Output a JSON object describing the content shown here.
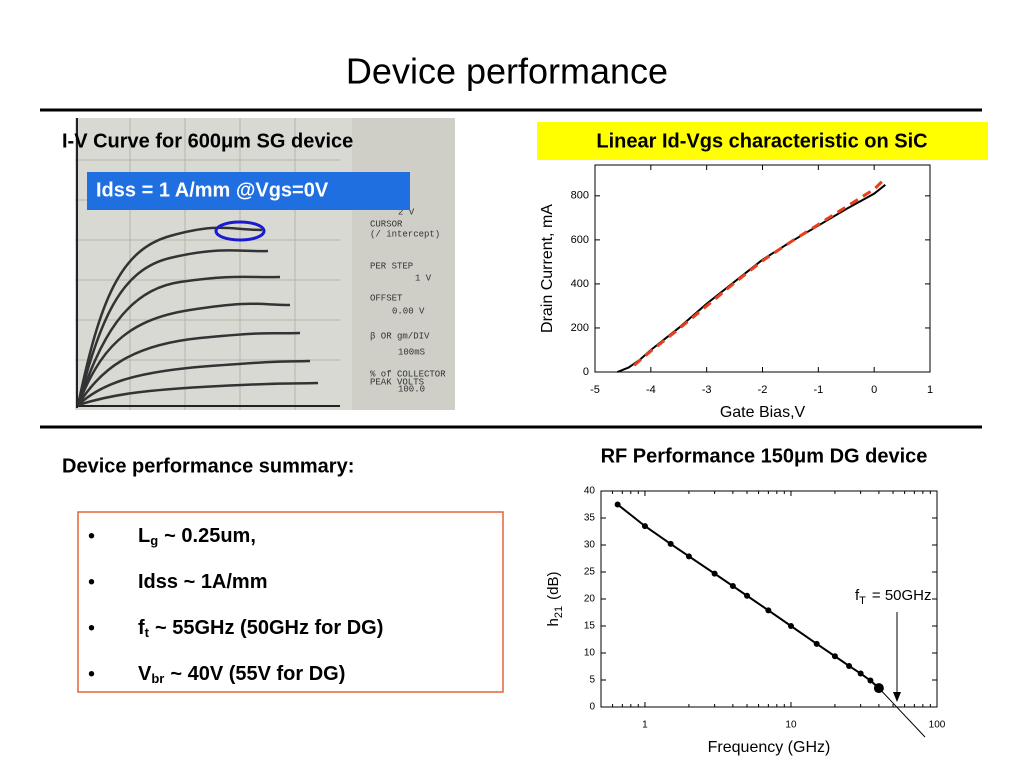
{
  "title": "Device performance",
  "iv_panel": {
    "heading": "I-V Curve for 600μm SG device",
    "callout": "Idss = 1 A/mm @Vgs=0V",
    "scope_labels": [
      "2 V",
      "CURSOR",
      "(/ intercept)",
      "PER STEP",
      "1 V",
      "OFFSET",
      "0.00 V",
      "β OR gm/DIV",
      "100mS",
      "% of COLLECTOR",
      "PEAK VOLTS",
      "100.0"
    ]
  },
  "summary": {
    "heading": "Device performance summary:",
    "items": [
      {
        "main": "L",
        "sub": "g",
        "rest": "~  0.25um,"
      },
      {
        "main": "Idss ~  1A/mm"
      },
      {
        "main": "f",
        "sub": "t",
        "rest": "~ 55GHz (50GHz for DG)"
      },
      {
        "main": "V",
        "sub": "br",
        "rest": "~ 40V (55V for DG)"
      }
    ]
  },
  "chart_data": [
    {
      "type": "line",
      "title": "Linear Id-Vgs characteristic on SiC",
      "x_label": "Gate Bias,V",
      "y_label": "Drain Current, mA",
      "xlim": [
        -5,
        1
      ],
      "xticks": [
        -5,
        -4,
        -3,
        -2,
        -1,
        0,
        1
      ],
      "ylim": [
        0,
        940
      ],
      "yticks": [
        0,
        200,
        400,
        600,
        800
      ],
      "series": [
        {
          "color": "#000000",
          "dash": false,
          "x": [
            -4.6,
            -4.4,
            -4.2,
            -4.0,
            -3.5,
            -3.0,
            -2.5,
            -2.0,
            -1.5,
            -1.0,
            -0.5,
            0.0,
            0.2
          ],
          "values": [
            0,
            20,
            55,
            100,
            200,
            310,
            410,
            510,
            590,
            665,
            740,
            810,
            850
          ]
        },
        {
          "color": "#e8401c",
          "dash": true,
          "x": [
            -4.3,
            -4.0,
            -3.5,
            -3.0,
            -2.5,
            -2.0,
            -1.5,
            -1.0,
            -0.5,
            0.0,
            0.2
          ],
          "values": [
            30,
            95,
            195,
            300,
            405,
            505,
            590,
            670,
            750,
            830,
            880
          ]
        }
      ]
    },
    {
      "type": "scatter",
      "title": "RF Performance 150μm DG device",
      "x_label": "Frequency (GHz)",
      "y_label": {
        "main": "h",
        "sub": "21",
        "rest": "(dB)"
      },
      "log_x": true,
      "xlim": [
        0.5,
        100
      ],
      "xticks": [
        1,
        10,
        100
      ],
      "ylim": [
        0,
        40
      ],
      "yticks": [
        0,
        5,
        10,
        15,
        20,
        25,
        30,
        35,
        40
      ],
      "annotation": {
        "main": "f",
        "sub": "T",
        "rest": "= 50GHz"
      },
      "series": [
        {
          "color": "#000000",
          "x": [
            0.65,
            1,
            1.5,
            2,
            3,
            4,
            5,
            7,
            10,
            15,
            20,
            25,
            30,
            35,
            40
          ],
          "values": [
            37.5,
            33.5,
            30.2,
            27.9,
            24.7,
            22.4,
            20.6,
            17.9,
            15.0,
            11.7,
            9.4,
            7.6,
            6.2,
            4.9,
            3.5
          ]
        }
      ]
    }
  ]
}
